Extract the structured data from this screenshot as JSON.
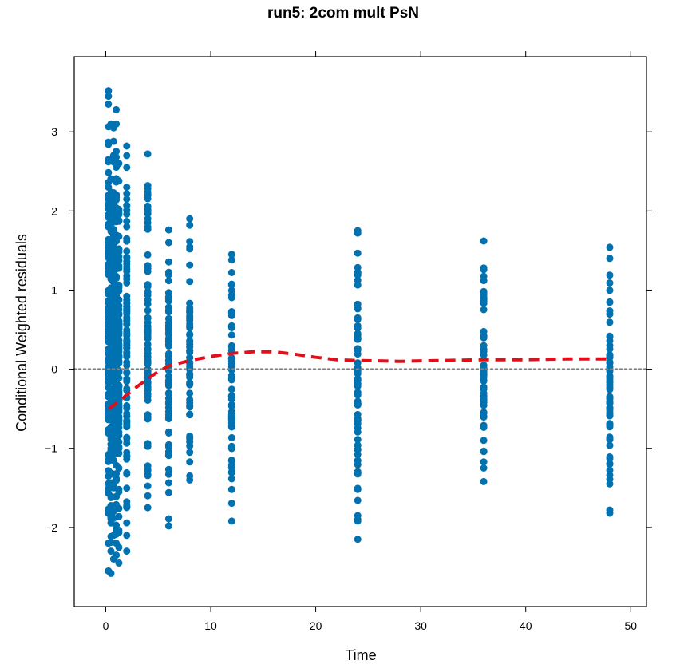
{
  "chart_data": {
    "type": "scatter",
    "title": "run5: 2com mult PsN",
    "xlabel": "Time",
    "ylabel": "Conditional Weighted residuals",
    "xlim": [
      -3,
      51.5
    ],
    "ylim": [
      -3.0,
      3.95
    ],
    "x_ticks": [
      0,
      10,
      20,
      30,
      40,
      50
    ],
    "y_ticks": [
      -2,
      -1,
      0,
      1,
      2,
      3
    ],
    "x_tick_labels": [
      "0",
      "10",
      "20",
      "30",
      "40",
      "50"
    ],
    "y_tick_labels": [
      "−2",
      "−1",
      "0",
      "1",
      "2",
      "3"
    ],
    "reference_line": {
      "y": 0,
      "style": "dotted",
      "color": "#808080"
    },
    "colors": {
      "points": "#0072B2",
      "smooth": "#E0101A",
      "frame": "#000000"
    },
    "groups": [
      {
        "x": 0.25,
        "min": -2.55,
        "max": 3.52,
        "extreme": [
          3.52,
          3.45,
          3.35,
          2.87,
          2.65,
          2.3,
          1.95,
          1.5,
          -1.8,
          -2.2,
          -2.55
        ]
      },
      {
        "x": 0.5,
        "min": -2.58,
        "max": 3.1,
        "extreme": [
          3.1,
          2.4,
          1.9,
          -2.3,
          -2.58
        ]
      },
      {
        "x": 0.75,
        "min": -2.4,
        "max": 3.05,
        "extreme": [
          3.05,
          2.62,
          2.05,
          -2.1,
          -2.4
        ]
      },
      {
        "x": 1.0,
        "min": -2.35,
        "max": 3.28,
        "extreme": [
          3.28,
          3.1,
          2.68,
          2.04,
          -2.2,
          -2.35
        ]
      },
      {
        "x": 1.25,
        "min": -2.45,
        "max": 2.6,
        "extreme": [
          2.6,
          2.02,
          -2.45
        ]
      },
      {
        "x": 2.0,
        "min": -2.3,
        "max": 2.82,
        "extreme": [
          2.82,
          2.7,
          2.3,
          2.22,
          1.8,
          -2.1,
          -2.3
        ]
      },
      {
        "x": 4.0,
        "min": -1.75,
        "max": 2.72,
        "extreme": [
          2.72,
          2.32,
          1.9,
          1.85,
          -1.6,
          -1.75
        ]
      },
      {
        "x": 6.0,
        "min": -1.98,
        "max": 1.76,
        "extreme": [
          1.76,
          1.6,
          -1.56,
          -1.98
        ]
      },
      {
        "x": 8.0,
        "min": -1.4,
        "max": 1.9,
        "extreme": [
          1.9,
          1.82,
          1.52,
          -1.05,
          -1.35,
          -1.4
        ]
      },
      {
        "x": 12.0,
        "min": -1.92,
        "max": 1.45,
        "extreme": [
          1.45,
          1.38,
          -1.15,
          -1.52,
          -1.92
        ]
      },
      {
        "x": 24.0,
        "min": -2.15,
        "max": 1.75,
        "extreme": [
          1.75,
          1.72,
          -1.3,
          -1.52,
          -1.85,
          -1.92,
          -2.15
        ]
      },
      {
        "x": 36.0,
        "min": -1.42,
        "max": 1.62,
        "extreme": [
          1.62,
          1.28,
          1.12,
          -0.9,
          -1.25,
          -1.42
        ]
      },
      {
        "x": 48.0,
        "min": -1.82,
        "max": 1.54,
        "extreme": [
          1.54,
          1.4,
          -1.2,
          -1.45,
          -1.78,
          -1.82
        ]
      }
    ],
    "smooth": {
      "x": [
        0.3,
        1.5,
        3.0,
        4.0,
        5.0,
        6.0,
        8.0,
        10.0,
        12.0,
        14.0,
        16.0,
        18.0,
        20.0,
        22.0,
        24.0,
        28.0,
        32.0,
        36.0,
        40.0,
        44.0,
        48.0
      ],
      "y": [
        -0.5,
        -0.38,
        -0.22,
        -0.12,
        -0.03,
        0.04,
        0.11,
        0.16,
        0.2,
        0.22,
        0.22,
        0.19,
        0.15,
        0.12,
        0.11,
        0.1,
        0.11,
        0.12,
        0.12,
        0.13,
        0.13
      ]
    }
  }
}
